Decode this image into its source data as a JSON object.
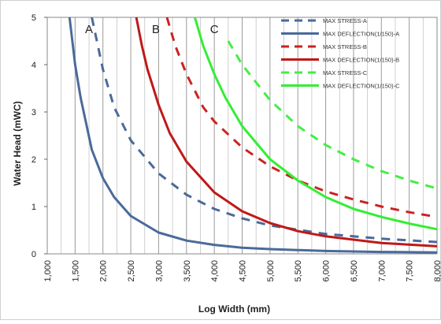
{
  "chart_data": {
    "type": "line",
    "title": "",
    "xlabel": "Log Width (mm)",
    "ylabel": "Water Head (mWC)",
    "xlim": [
      1000,
      8000
    ],
    "ylim": [
      0,
      5
    ],
    "x_tick_labels": [
      "1,000",
      "1,500",
      "2,000",
      "2,500",
      "3,000",
      "3,500",
      "4,000",
      "4,500",
      "5,000",
      "5,500",
      "6,000",
      "6,500",
      "7,000",
      "7,500",
      "8,000"
    ],
    "y_tick_labels": [
      "0",
      "1",
      "2",
      "3",
      "4",
      "5"
    ],
    "grid": "vertical",
    "legend": "top-right",
    "annotations": [
      {
        "text": "A",
        "x": 1750,
        "y": 4.75
      },
      {
        "text": "B",
        "x": 2950,
        "y": 4.75
      },
      {
        "text": "C",
        "x": 4000,
        "y": 4.75
      }
    ],
    "series": [
      {
        "name": "MAX STRESS-A",
        "color": "#4a6a9a",
        "dash": "dashed",
        "x": [
          1800,
          2000,
          2200,
          2500,
          3000,
          3500,
          4000,
          4500,
          5000,
          6000,
          7000,
          8000
        ],
        "y": [
          5.0,
          3.9,
          3.1,
          2.4,
          1.7,
          1.25,
          0.95,
          0.75,
          0.6,
          0.42,
          0.32,
          0.25
        ]
      },
      {
        "name": "MAX DEFLECTION(1/150)-A",
        "color": "#4a6a9a",
        "dash": "solid",
        "x": [
          1400,
          1500,
          1600,
          1800,
          2000,
          2200,
          2500,
          3000,
          3500,
          4000,
          4500,
          5000,
          6000,
          7000,
          8000
        ],
        "y": [
          5.0,
          4.0,
          3.3,
          2.2,
          1.6,
          1.2,
          0.8,
          0.45,
          0.28,
          0.19,
          0.13,
          0.1,
          0.06,
          0.04,
          0.03
        ]
      },
      {
        "name": "MAX STRESS-B",
        "color": "#cc2222",
        "dash": "dashed",
        "x": [
          3150,
          3300,
          3500,
          3800,
          4000,
          4500,
          5000,
          5500,
          6000,
          6500,
          7000,
          7500,
          8000
        ],
        "y": [
          5.0,
          4.4,
          3.8,
          3.1,
          2.8,
          2.25,
          1.85,
          1.55,
          1.32,
          1.15,
          1.0,
          0.88,
          0.78
        ]
      },
      {
        "name": "MAX DEFLECTION(1/150)-B",
        "color": "#c01818",
        "dash": "solid",
        "x": [
          2600,
          2700,
          2800,
          3000,
          3200,
          3500,
          4000,
          4500,
          5000,
          5500,
          6000,
          7000,
          8000
        ],
        "y": [
          5.0,
          4.4,
          3.9,
          3.15,
          2.55,
          1.95,
          1.3,
          0.9,
          0.65,
          0.48,
          0.37,
          0.23,
          0.16
        ]
      },
      {
        "name": "MAX STRESS-C",
        "color": "#44ee44",
        "dash": "dashed",
        "x": [
          4250,
          4500,
          5000,
          5500,
          6000,
          6500,
          7000,
          7500,
          8000
        ],
        "y": [
          4.5,
          4.0,
          3.25,
          2.7,
          2.3,
          2.0,
          1.75,
          1.55,
          1.38
        ]
      },
      {
        "name": "MAX DEFLECTION(1/150)-C",
        "color": "#33ee33",
        "dash": "solid",
        "x": [
          3650,
          3800,
          4000,
          4200,
          4500,
          5000,
          5500,
          6000,
          6500,
          7000,
          7500,
          8000
        ],
        "y": [
          5.0,
          4.4,
          3.8,
          3.3,
          2.7,
          2.0,
          1.55,
          1.2,
          0.95,
          0.78,
          0.64,
          0.52
        ]
      }
    ]
  }
}
